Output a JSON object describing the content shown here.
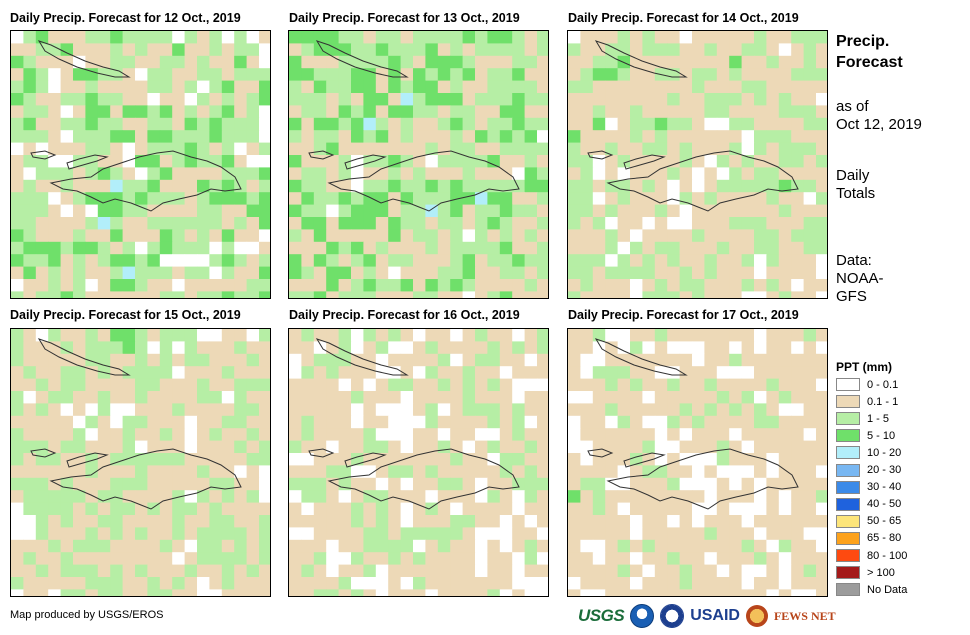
{
  "panels": [
    {
      "title": "Daily Precip. Forecast for 12 Oct., 2019"
    },
    {
      "title": "Daily Precip. Forecast for 13 Oct., 2019"
    },
    {
      "title": "Daily Precip. Forecast for 14 Oct., 2019"
    },
    {
      "title": "Daily Precip. Forecast for 15 Oct., 2019"
    },
    {
      "title": "Daily Precip. Forecast for 16 Oct., 2019"
    },
    {
      "title": "Daily Precip. Forecast for 17 Oct., 2019"
    }
  ],
  "sidebar": {
    "title_line1": "Precip.",
    "title_line2": "Forecast",
    "asof_line1": "as of",
    "asof_line2": "Oct 12, 2019",
    "totals_line1": "Daily",
    "totals_line2": "Totals",
    "data_line1": "Data:",
    "data_line2": "NOAA-",
    "data_line3": "GFS"
  },
  "legend": {
    "title": "PPT (mm)",
    "items": [
      {
        "label": "0 - 0.1",
        "color": "#ffffff"
      },
      {
        "label": "0.1 - 1",
        "color": "#edd9b7"
      },
      {
        "label": "1 - 5",
        "color": "#b6eea5"
      },
      {
        "label": "5 - 10",
        "color": "#6fe06a"
      },
      {
        "label": "10 - 20",
        "color": "#b2eefa"
      },
      {
        "label": "20 - 30",
        "color": "#78b7f2"
      },
      {
        "label": "30 - 40",
        "color": "#3b8ae8"
      },
      {
        "label": "40 - 50",
        "color": "#1f62dd"
      },
      {
        "label": "50 - 65",
        "color": "#fde57a"
      },
      {
        "label": "65 - 80",
        "color": "#fda21c"
      },
      {
        "label": "80 - 100",
        "color": "#fe4a10"
      },
      {
        "label": "> 100",
        "color": "#a41a1a"
      },
      {
        "label": "No Data",
        "color": "#9c9c9c"
      }
    ]
  },
  "credit": "Map produced by USGS/EROS",
  "logos": {
    "usgs": "USGS",
    "usaid": "USAID",
    "fews": "FEWS NET"
  },
  "icons": [
    "noaa-logo-icon",
    "usaid-seal-icon",
    "fews-net-logo-icon"
  ]
}
